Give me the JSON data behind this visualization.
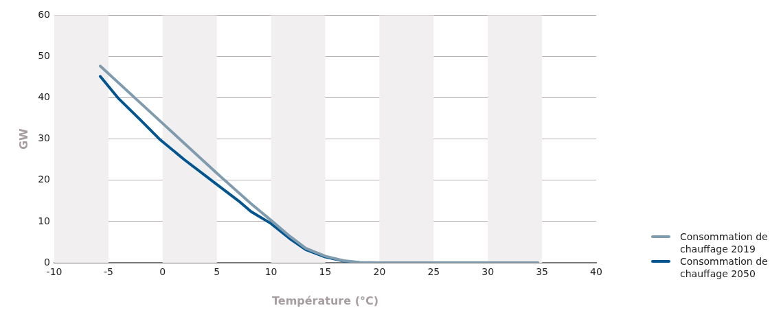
{
  "chart_data": {
    "type": "line",
    "xlabel": "Température (°C)",
    "ylabel": "GW",
    "xlim": [
      -10,
      40
    ],
    "xticks": [
      -10,
      -5,
      0,
      5,
      10,
      15,
      20,
      25,
      30,
      35,
      40
    ],
    "ylim": [
      0,
      60
    ],
    "yticks": [
      0,
      10,
      20,
      30,
      40,
      50,
      60
    ],
    "grid": "y",
    "legend": "right",
    "marker": "none",
    "line_style": "solid",
    "bands": [
      {
        "axis": "x",
        "from": -10,
        "to": -5,
        "color": "#f2eff0"
      },
      {
        "axis": "x",
        "from": 0,
        "to": 5,
        "color": "#f2eff0"
      },
      {
        "axis": "x",
        "from": 10,
        "to": 15,
        "color": "#f2eff0"
      },
      {
        "axis": "x",
        "from": 20,
        "to": 25,
        "color": "#f2eff0"
      },
      {
        "axis": "x",
        "from": 30,
        "to": 35,
        "color": "#f2eff0"
      }
    ],
    "series": [
      {
        "name": "Consommation de chauffage 2019",
        "color": "#7f9bae",
        "x": [
          -5.76,
          0,
          5,
          8.16,
          10,
          11.7,
          13.2,
          15,
          16.7,
          18.2,
          20,
          34.6
        ],
        "values": [
          47.7,
          33.8,
          21.7,
          14.3,
          10.3,
          6.5,
          3.5,
          1.6,
          0.5,
          0.1,
          0,
          0
        ]
      },
      {
        "name": "Consommation de chauffage 2050",
        "color": "#005590",
        "x": [
          -5.76,
          -4.13,
          -2,
          -0.3,
          2,
          4.5,
          7,
          8.16,
          10,
          11.7,
          13.2,
          15,
          16.7,
          18.2,
          20,
          34.6
        ],
        "values": [
          45.2,
          40,
          34.5,
          30,
          25,
          20,
          15,
          12.4,
          9.5,
          5.9,
          3.2,
          1.4,
          0.4,
          0,
          0,
          0
        ]
      }
    ]
  }
}
